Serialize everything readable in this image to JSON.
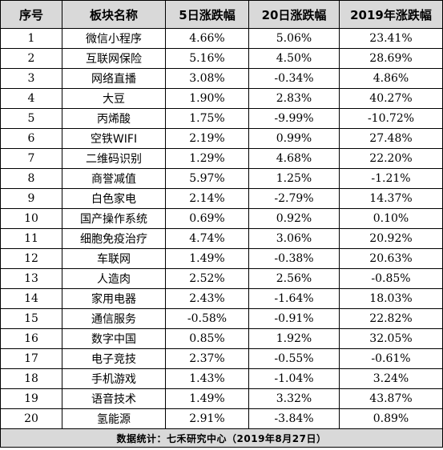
{
  "table": {
    "headers": [
      "序号",
      "板块名称",
      "5日涨跌幅",
      "20日涨跌幅",
      "2019年涨跌幅"
    ],
    "rows": [
      [
        "1",
        "微信小程序",
        "4.66%",
        "5.06%",
        "23.41%"
      ],
      [
        "2",
        "互联网保险",
        "5.16%",
        "4.50%",
        "28.69%"
      ],
      [
        "3",
        "网络直播",
        "3.08%",
        "-0.34%",
        "4.86%"
      ],
      [
        "4",
        "大豆",
        "1.90%",
        "2.83%",
        "40.27%"
      ],
      [
        "5",
        "丙烯酸",
        "1.75%",
        "-9.99%",
        "-10.72%"
      ],
      [
        "6",
        "空铁WIFI",
        "2.19%",
        "0.99%",
        "27.48%"
      ],
      [
        "7",
        "二维码识别",
        "1.29%",
        "4.68%",
        "22.20%"
      ],
      [
        "8",
        "商誉减值",
        "5.97%",
        "1.25%",
        "-1.21%"
      ],
      [
        "9",
        "白色家电",
        "2.14%",
        "-2.79%",
        "14.37%"
      ],
      [
        "10",
        "国产操作系统",
        "0.69%",
        "0.92%",
        "0.10%"
      ],
      [
        "11",
        "细胞免疫治疗",
        "4.74%",
        "3.06%",
        "20.92%"
      ],
      [
        "12",
        "车联网",
        "1.49%",
        "-0.38%",
        "20.63%"
      ],
      [
        "13",
        "人造肉",
        "2.52%",
        "2.56%",
        "-0.85%"
      ],
      [
        "14",
        "家用电器",
        "2.43%",
        "-1.64%",
        "18.03%"
      ],
      [
        "15",
        "通信服务",
        "-0.58%",
        "-0.91%",
        "22.82%"
      ],
      [
        "16",
        "数字中国",
        "0.85%",
        "1.92%",
        "32.05%"
      ],
      [
        "17",
        "电子竞技",
        "2.37%",
        "-0.55%",
        "-0.61%"
      ],
      [
        "18",
        "手机游戏",
        "1.43%",
        "-1.04%",
        "3.24%"
      ],
      [
        "19",
        "语音技术",
        "1.49%",
        "3.32%",
        "43.87%"
      ],
      [
        "20",
        "氢能源",
        "2.91%",
        "-3.84%",
        "0.89%"
      ]
    ],
    "footer": "数据统计：七禾研究中心（2019年8月27日）"
  },
  "colors": {
    "header_bg": "#d9d9d9",
    "footer_bg": "#d9d9d9",
    "border": "#000000",
    "text": "#000000"
  }
}
